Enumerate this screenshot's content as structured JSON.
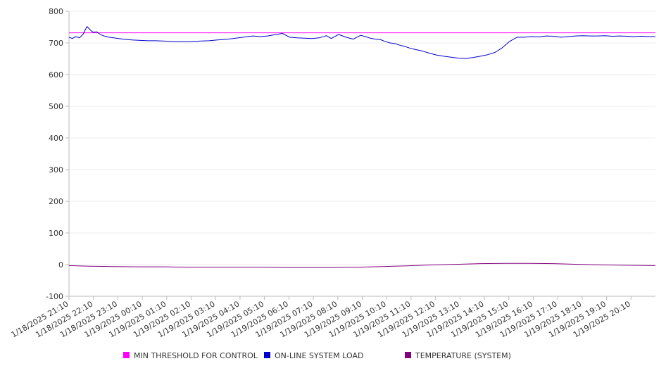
{
  "chart_data": {
    "type": "line",
    "title": "",
    "xlabel": "",
    "ylabel": "",
    "ylim": [
      -100,
      800
    ],
    "yticks": [
      -100,
      0,
      100,
      200,
      300,
      400,
      500,
      600,
      700,
      800
    ],
    "x_tick_labels": [
      "1/18/2025 21:10",
      "1/18/2025 22:10",
      "1/18/2025 23:10",
      "1/19/2025 00:10",
      "1/19/2025 01:10",
      "1/19/2025 02:10",
      "1/19/2025 03:10",
      "1/19/2025 04:10",
      "1/19/2025 05:10",
      "1/19/2025 06:10",
      "1/19/2025 07:10",
      "1/19/2025 08:10",
      "1/19/2025 09:10",
      "1/19/2025 10:10",
      "1/19/2025 11:10",
      "1/19/2025 12:10",
      "1/19/2025 13:10",
      "1/19/2025 14:10",
      "1/19/2025 15:10",
      "1/19/2025 16:10",
      "1/19/2025 17:10",
      "1/19/2025 18:10",
      "1/19/2025 19:10",
      "1/19/2025 20:10"
    ],
    "x_tick_hours": [
      21.1667,
      22.1667,
      23.1667,
      24.1667,
      25.1667,
      26.1667,
      27.1667,
      28.1667,
      29.1667,
      30.1667,
      31.1667,
      32.1667,
      33.1667,
      34.1667,
      35.1667,
      36.1667,
      37.1667,
      38.1667,
      39.1667,
      40.1667,
      41.1667,
      42.1667,
      43.1667,
      44.1667
    ],
    "x_range_hours": [
      21.1667,
      45.1667
    ],
    "legend_position": "bottom",
    "grid": true,
    "series": [
      {
        "name": "MIN THRESHOLD FOR CONTROL",
        "color": "#ff00ff",
        "x": [
          21.1667,
          45.1667
        ],
        "values": [
          732,
          732
        ]
      },
      {
        "name": "ON-LINE SYSTEM LOAD",
        "color": "#0000cc",
        "x": [
          21.1667,
          21.3,
          21.45,
          21.6,
          21.75,
          21.9,
          22.05,
          22.15,
          22.3,
          22.45,
          22.6,
          22.8,
          23.0,
          23.2,
          23.5,
          23.8,
          24.1,
          24.4,
          24.7,
          25.0,
          25.3,
          25.6,
          26.0,
          26.3,
          26.6,
          26.9,
          27.2,
          27.5,
          27.8,
          28.1,
          28.4,
          28.7,
          29.0,
          29.3,
          29.6,
          29.9,
          30.2,
          30.5,
          30.8,
          31.1,
          31.4,
          31.7,
          31.9,
          32.2,
          32.5,
          32.8,
          33.1,
          33.3,
          33.5,
          33.7,
          33.9,
          34.1,
          34.3,
          34.5,
          34.7,
          34.9,
          35.1,
          35.3,
          35.6,
          35.9,
          36.2,
          36.5,
          36.8,
          37.1,
          37.4,
          37.7,
          38.0,
          38.3,
          38.6,
          38.9,
          39.2,
          39.5,
          39.8,
          40.1,
          40.4,
          40.7,
          41.0,
          41.3,
          41.6,
          41.9,
          42.2,
          42.5,
          42.8,
          43.1,
          43.4,
          43.7,
          44.0,
          44.3,
          44.6,
          44.9,
          45.1667
        ],
        "values": [
          718,
          714,
          720,
          716,
          728,
          752,
          740,
          734,
          735,
          727,
          722,
          718,
          716,
          714,
          711,
          709,
          708,
          707,
          707,
          706,
          705,
          704,
          704,
          705,
          706,
          707,
          709,
          711,
          713,
          716,
          719,
          722,
          720,
          722,
          726,
          730,
          718,
          716,
          715,
          714,
          716,
          723,
          714,
          727,
          718,
          712,
          724,
          720,
          715,
          712,
          711,
          705,
          700,
          698,
          693,
          689,
          684,
          680,
          675,
          668,
          662,
          658,
          655,
          652,
          651,
          654,
          658,
          663,
          670,
          685,
          705,
          718,
          718,
          720,
          719,
          722,
          721,
          718,
          720,
          722,
          723,
          722,
          722,
          723,
          721,
          722,
          721,
          720,
          721,
          720,
          720
        ]
      },
      {
        "name": "TEMPERATURE (SYSTEM)",
        "color": "#800080",
        "x": [
          21.1667,
          21.5,
          22.0,
          23.0,
          24.0,
          25.0,
          26.0,
          27.0,
          28.0,
          29.0,
          30.0,
          31.0,
          32.0,
          33.0,
          34.0,
          35.0,
          36.0,
          37.0,
          38.0,
          39.0,
          40.0,
          41.0,
          42.0,
          43.0,
          44.0,
          45.1667
        ],
        "values": [
          -3,
          -4,
          -5,
          -6,
          -7,
          -7,
          -8,
          -8,
          -8,
          -8,
          -9,
          -9,
          -9,
          -8,
          -6,
          -4,
          -1,
          1,
          3,
          4,
          4,
          3,
          1,
          -1,
          -2,
          -3
        ]
      }
    ]
  }
}
